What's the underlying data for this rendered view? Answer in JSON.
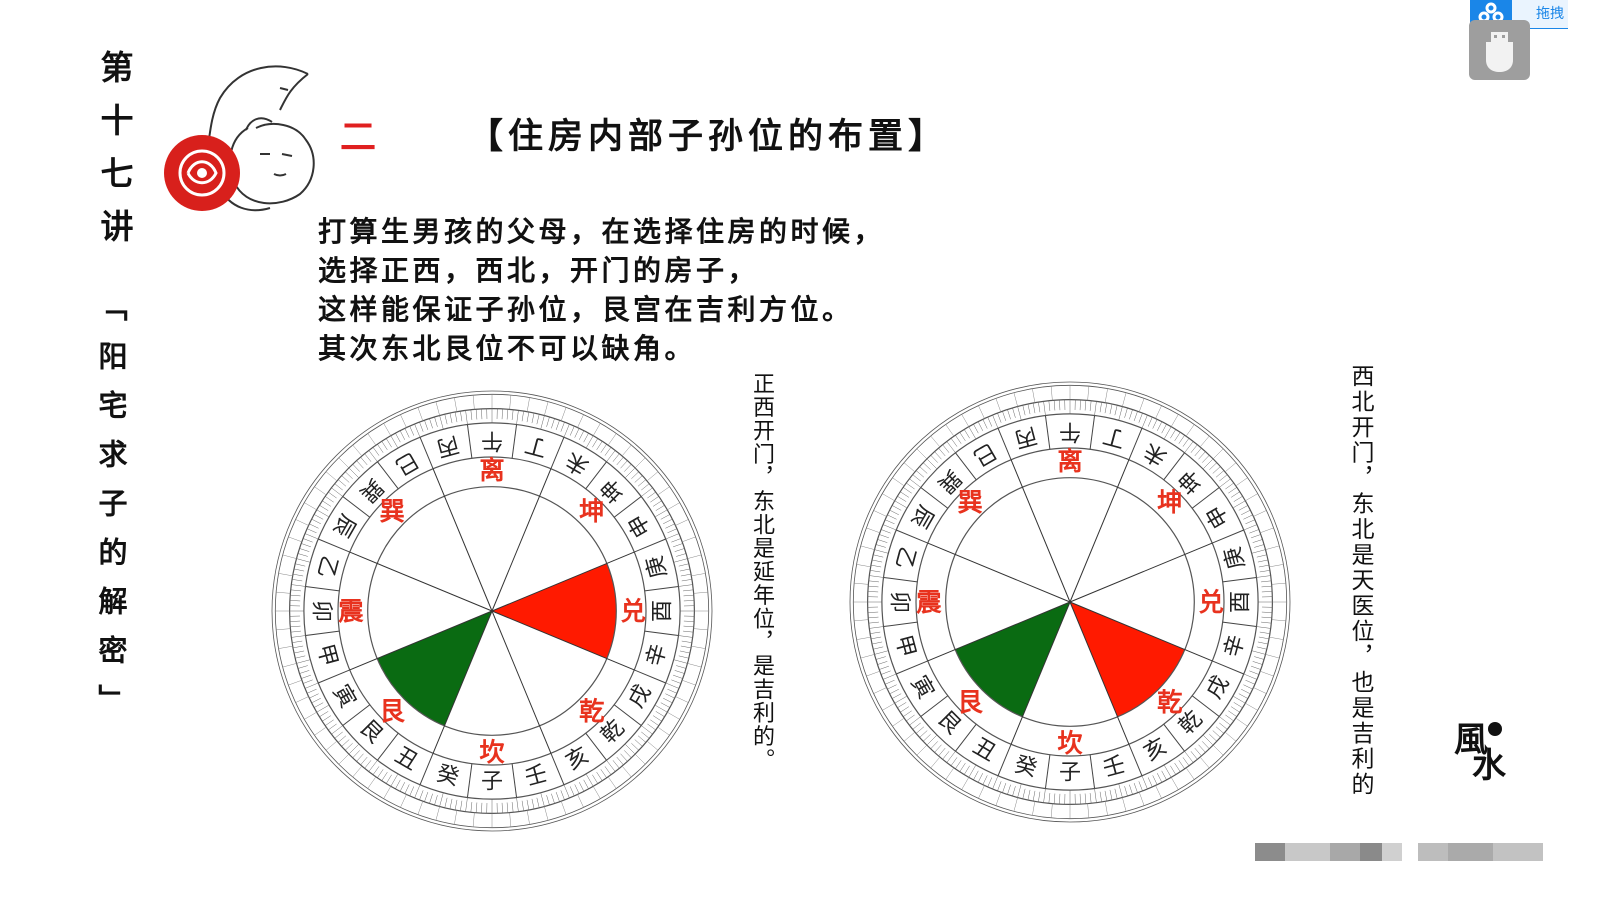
{
  "slide": {
    "lecture_label": "第十七讲",
    "subject_label": "「阳宅求子的解密」",
    "section_number": "二",
    "title": "【住房内部子孙位的布置】",
    "paragraph": [
      "打算生男孩的父母，在选择住房的时候，",
      "选择正西，西北，开门的房子，",
      "这样能保证子孙位，艮宫在吉利方位。",
      "其次东北艮位不可以缺角。"
    ],
    "caption_left": "正西开门，东北是延年位，是吉利的。",
    "caption_right": "西北开门，东北是天医位，也是吉利的",
    "logo_text": "風水"
  },
  "compass": {
    "mountains": [
      "午",
      "丁",
      "未",
      "坤",
      "申",
      "庚",
      "酉",
      "辛",
      "戌",
      "乾",
      "亥",
      "壬",
      "子",
      "癸",
      "丑",
      "艮",
      "寅",
      "甲",
      "卯",
      "乙",
      "辰",
      "巽",
      "巳",
      "丙"
    ],
    "trigrams": [
      "离",
      "坤",
      "兑",
      "乾",
      "坎",
      "艮",
      "震",
      "巽"
    ],
    "left": {
      "good_red": "兑",
      "good_green": "艮"
    },
    "right": {
      "good_red": "乾",
      "good_green": "艮"
    }
  },
  "colors": {
    "red": "#ff1a00",
    "green": "#0a6b12",
    "trigram_text": "#e8321e",
    "accent": "#e02020",
    "widget_blue": "#1a86e8"
  },
  "widget": {
    "drag_label": "拖拽",
    "icons": [
      "cloud-link-icon",
      "usb-drive-icon"
    ]
  }
}
